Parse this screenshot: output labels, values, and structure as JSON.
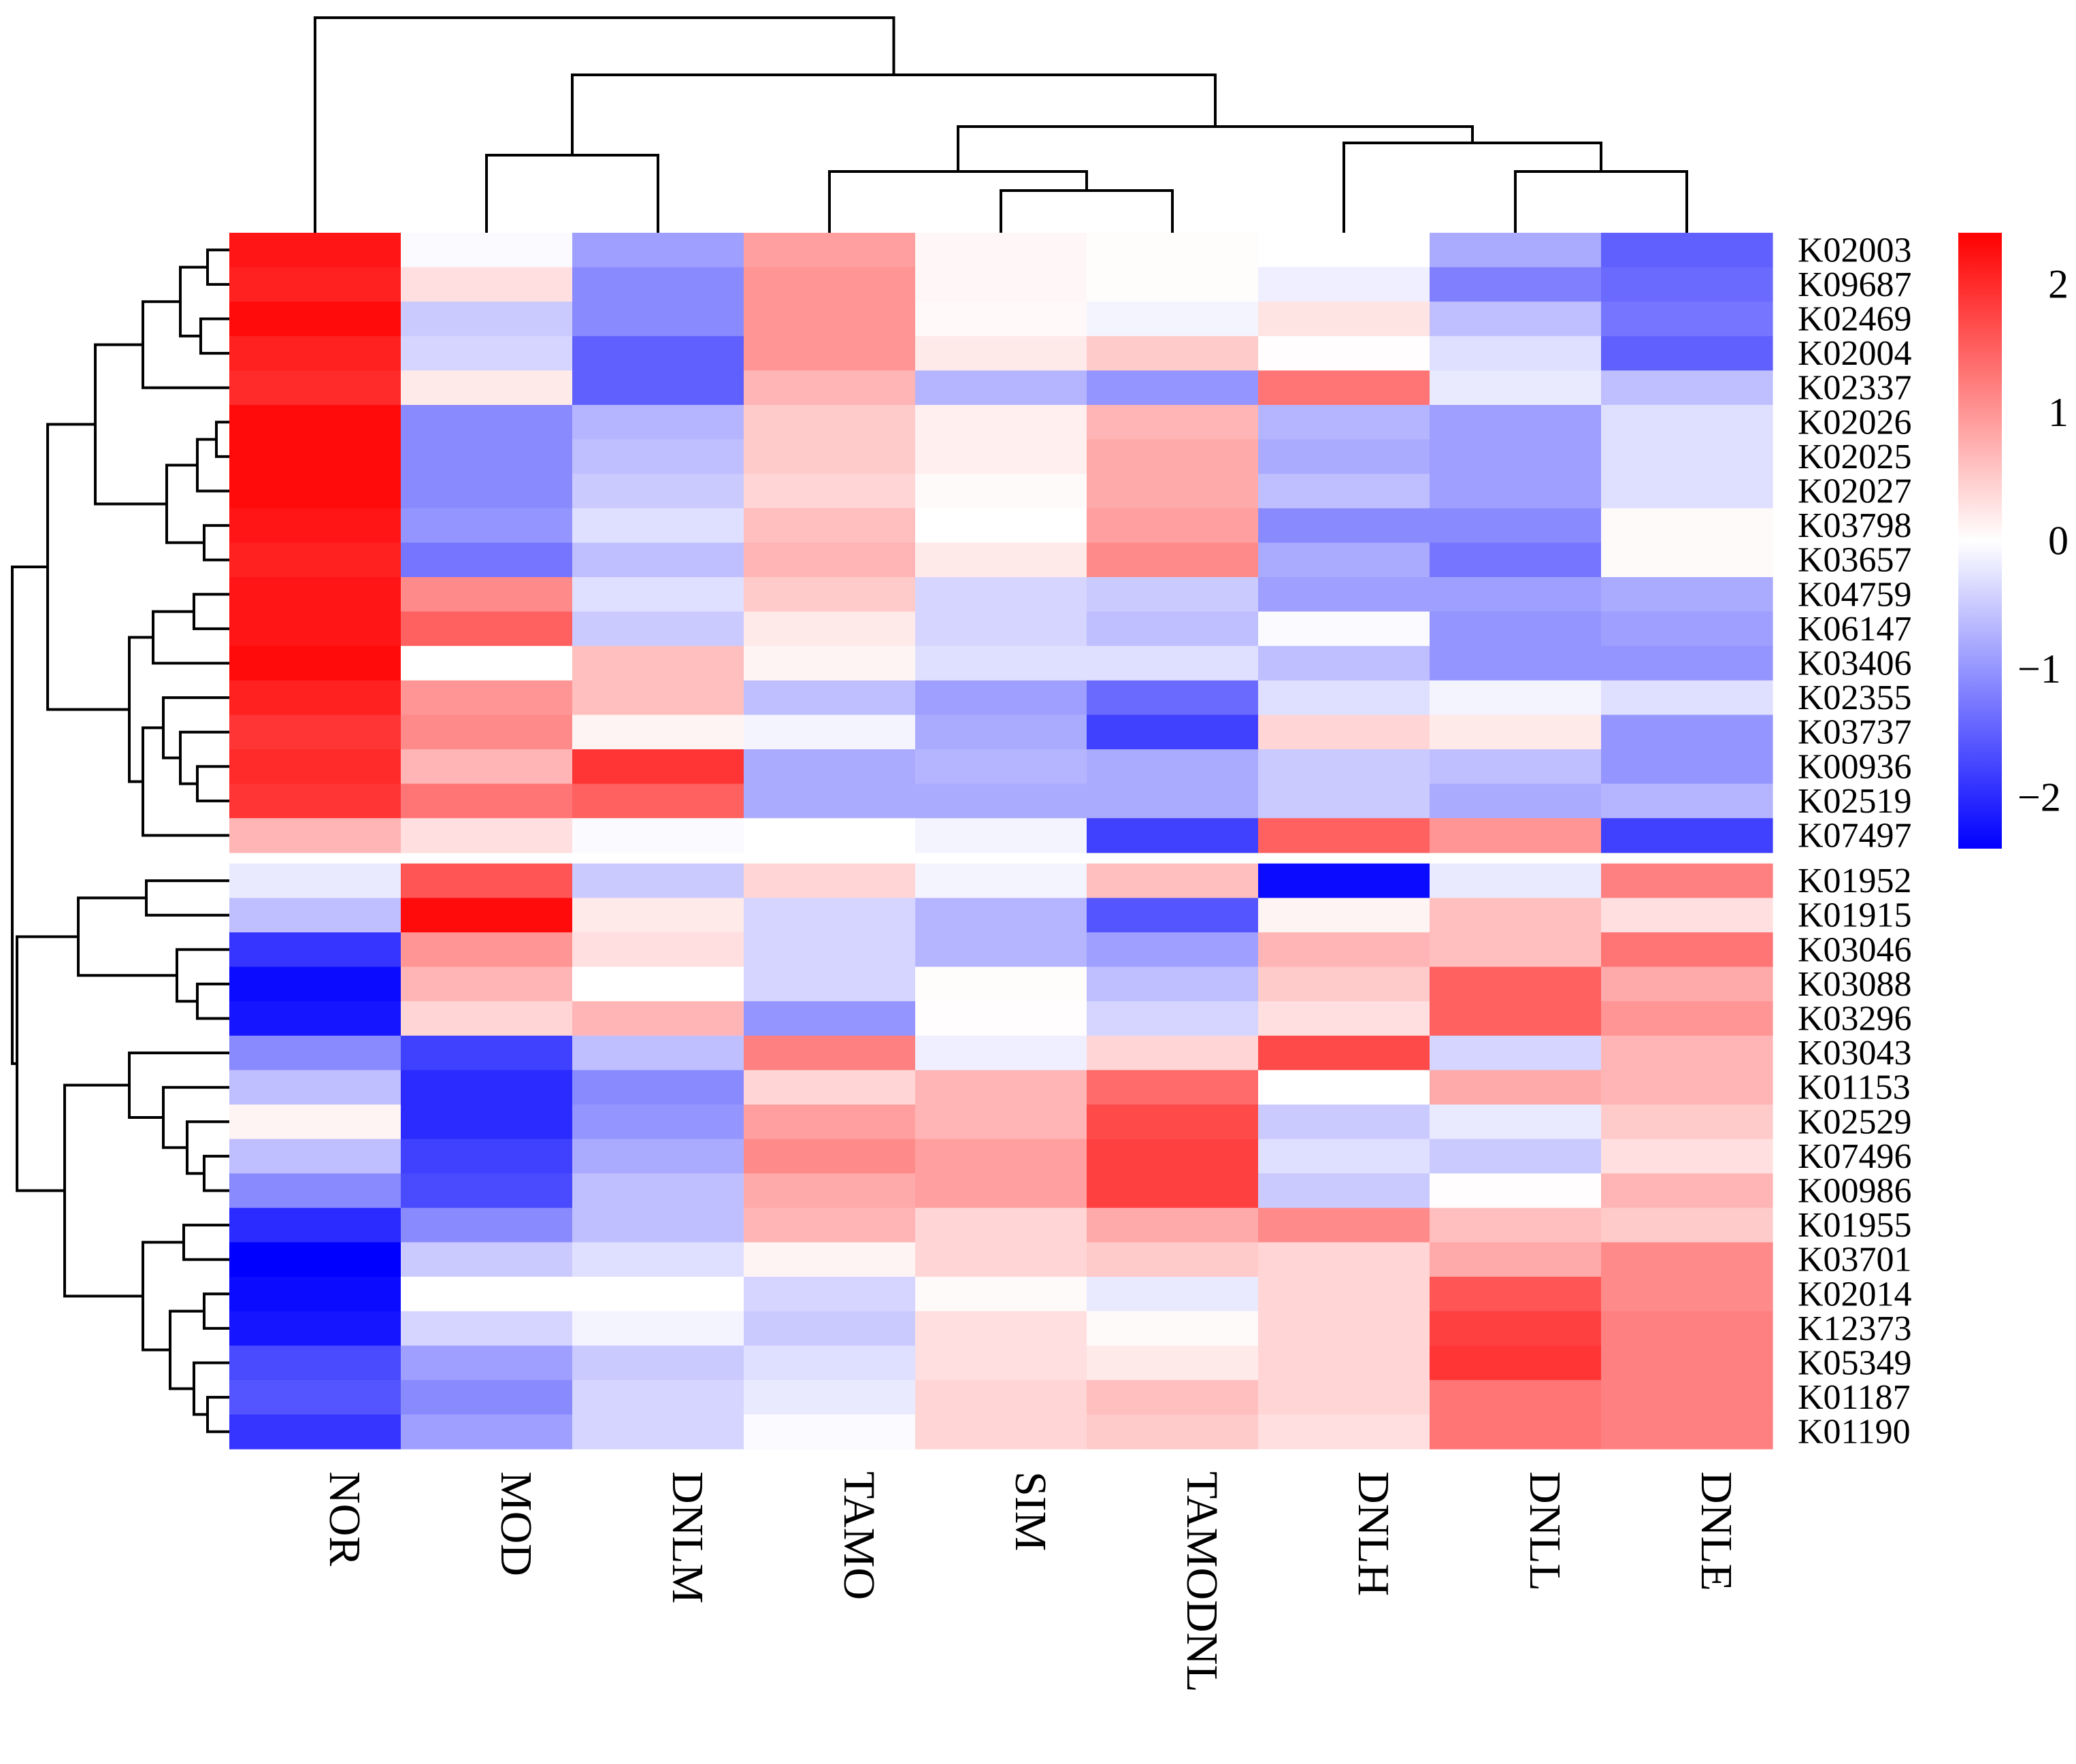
{
  "chart_data": {
    "type": "heatmap",
    "title": "",
    "columns": [
      "NOR",
      "MOD",
      "DNLM",
      "TAMO",
      "SIM",
      "TAMODNL",
      "DNLH",
      "DNLL",
      "DNLE"
    ],
    "rows": [
      "K02003",
      "K09687",
      "K02469",
      "K02004",
      "K02337",
      "K02026",
      "K02025",
      "K02027",
      "K03798",
      "K03657",
      "K04759",
      "K06147",
      "K03406",
      "K02355",
      "K03737",
      "K00936",
      "K02519",
      "K07497",
      "K01952",
      "K01915",
      "K03046",
      "K03088",
      "K03296",
      "K03043",
      "K01153",
      "K02529",
      "K07496",
      "K00986",
      "K01955",
      "K03701",
      "K02014",
      "K12373",
      "K05349",
      "K01187",
      "K01190"
    ],
    "row_split_after_index": 17,
    "values": [
      [
        2.2,
        -0.05,
        -0.9,
        0.9,
        0.08,
        0.03,
        0.0,
        -0.8,
        -1.5
      ],
      [
        2.1,
        0.3,
        -1.1,
        1.0,
        0.08,
        0.03,
        -0.15,
        -1.2,
        -1.4
      ],
      [
        2.3,
        -0.5,
        -1.1,
        1.0,
        0.06,
        -0.1,
        0.25,
        -0.6,
        -1.3
      ],
      [
        2.1,
        -0.4,
        -1.5,
        1.0,
        0.2,
        0.5,
        0.02,
        -0.3,
        -1.5
      ],
      [
        2.0,
        0.2,
        -1.5,
        0.7,
        -0.7,
        -1.0,
        1.3,
        -0.2,
        -0.6
      ],
      [
        2.3,
        -1.1,
        -0.7,
        0.5,
        0.15,
        0.7,
        -0.7,
        -0.9,
        -0.3
      ],
      [
        2.3,
        -1.1,
        -0.6,
        0.5,
        0.15,
        0.8,
        -0.8,
        -0.9,
        -0.3
      ],
      [
        2.3,
        -1.1,
        -0.5,
        0.4,
        0.05,
        0.8,
        -0.6,
        -0.9,
        -0.3
      ],
      [
        2.2,
        -1.0,
        -0.3,
        0.6,
        0.0,
        0.9,
        -1.1,
        -1.1,
        0.05
      ],
      [
        2.1,
        -1.3,
        -0.6,
        0.7,
        0.2,
        1.1,
        -0.8,
        -1.3,
        0.05
      ],
      [
        2.2,
        1.1,
        -0.3,
        0.5,
        -0.4,
        -0.5,
        -0.9,
        -0.9,
        -0.8
      ],
      [
        2.2,
        1.5,
        -0.5,
        0.2,
        -0.4,
        -0.6,
        -0.05,
        -1.0,
        -0.9
      ],
      [
        2.3,
        0.0,
        0.6,
        0.1,
        -0.3,
        -0.3,
        -0.6,
        -1.0,
        -1.0
      ],
      [
        2.1,
        1.0,
        0.6,
        -0.6,
        -0.9,
        -1.4,
        -0.3,
        -0.1,
        -0.3
      ],
      [
        1.9,
        1.1,
        0.1,
        -0.1,
        -0.8,
        -1.8,
        0.4,
        0.2,
        -1.0
      ],
      [
        2.0,
        0.7,
        1.9,
        -0.8,
        -0.7,
        -0.8,
        -0.5,
        -0.6,
        -1.0
      ],
      [
        1.9,
        1.3,
        1.5,
        -0.8,
        -0.8,
        -0.8,
        -0.5,
        -0.8,
        -0.7
      ],
      [
        0.7,
        0.3,
        -0.05,
        0.0,
        -0.1,
        -1.8,
        1.5,
        1.0,
        -1.8
      ],
      [
        -0.2,
        1.6,
        -0.5,
        0.4,
        -0.1,
        0.6,
        -2.3,
        -0.2,
        1.2
      ],
      [
        -0.6,
        2.3,
        0.2,
        -0.4,
        -0.7,
        -1.6,
        0.1,
        0.6,
        0.3
      ],
      [
        -1.9,
        1.0,
        0.3,
        -0.4,
        -0.7,
        -0.9,
        0.7,
        0.6,
        1.3
      ],
      [
        -2.3,
        0.7,
        0.0,
        -0.4,
        0.03,
        -0.6,
        0.5,
        1.5,
        0.8
      ],
      [
        -2.2,
        0.4,
        0.7,
        -1.0,
        0.02,
        -0.4,
        0.3,
        1.5,
        1.0
      ],
      [
        -1.1,
        -1.8,
        -0.6,
        1.2,
        -0.15,
        0.4,
        1.7,
        -0.4,
        0.7
      ],
      [
        -0.6,
        -2.0,
        -1.1,
        0.4,
        0.7,
        1.4,
        0.0,
        0.8,
        0.7
      ],
      [
        0.1,
        -2.0,
        -1.0,
        0.9,
        0.7,
        1.7,
        -0.5,
        -0.2,
        0.5
      ],
      [
        -0.6,
        -1.8,
        -0.8,
        1.1,
        0.9,
        1.8,
        -0.3,
        -0.5,
        0.3
      ],
      [
        -1.1,
        -1.7,
        -0.6,
        0.8,
        0.9,
        1.8,
        -0.5,
        0.02,
        0.7
      ],
      [
        -2.0,
        -1.1,
        -0.6,
        0.7,
        0.4,
        0.8,
        1.1,
        0.6,
        0.5
      ],
      [
        -2.4,
        -0.5,
        -0.3,
        0.1,
        0.4,
        0.5,
        0.4,
        0.8,
        1.1
      ],
      [
        -2.3,
        0.0,
        0.0,
        -0.4,
        0.05,
        -0.2,
        0.4,
        1.6,
        1.1
      ],
      [
        -2.2,
        -0.4,
        -0.1,
        -0.5,
        0.3,
        0.05,
        0.4,
        1.8,
        1.2
      ],
      [
        -1.7,
        -0.9,
        -0.5,
        -0.3,
        0.3,
        0.2,
        0.4,
        1.9,
        1.2
      ],
      [
        -1.6,
        -1.1,
        -0.4,
        -0.2,
        0.4,
        0.6,
        0.4,
        1.3,
        1.2
      ],
      [
        -1.9,
        -0.9,
        -0.4,
        -0.05,
        0.4,
        0.5,
        0.3,
        1.3,
        1.2
      ]
    ],
    "color_scale": {
      "min": -2.4,
      "mid": 0,
      "max": 2.4,
      "low_color": "#0000ff",
      "mid_color": "#ffffff",
      "high_color": "#ff0000"
    },
    "legend": {
      "ticks": [
        2,
        1,
        0,
        -1,
        -2
      ],
      "tick_labels": [
        "2",
        "1",
        "0",
        "−1",
        "−2"
      ],
      "placement": "top-right"
    },
    "column_dendrogram": true,
    "row_dendrogram": true
  }
}
